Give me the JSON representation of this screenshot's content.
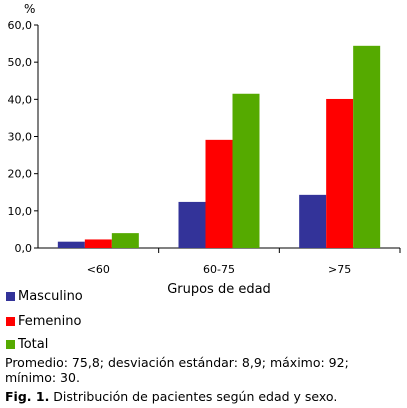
{
  "chart_data": {
    "type": "bar",
    "categories": [
      "<60",
      "60-75",
      ">75"
    ],
    "series": [
      {
        "name": "Masculino",
        "color": "#333399",
        "values": [
          1.7,
          12.4,
          14.3
        ]
      },
      {
        "name": "Femenino",
        "color": "#ff0000",
        "values": [
          2.3,
          29.1,
          40.1
        ]
      },
      {
        "name": "Total",
        "color": "#55aa00",
        "values": [
          4.0,
          41.5,
          54.4
        ]
      }
    ],
    "yunit": "%",
    "xlabel": "Grupos de edad",
    "ylim": [
      0,
      60
    ],
    "yticks": [
      "0,0",
      "10,0",
      "20,0",
      "30,0",
      "40,0",
      "50,0",
      "60,0"
    ],
    "grid": false,
    "legend_position": "bottom-left"
  },
  "caption": {
    "stats": "Promedio: 75,8;   desviación estándar: 8,9;   máximo: 92;   mínimo: 30.",
    "fig_label": "Fig. 1.",
    "fig_text": " Distribución de pacientes según edad y sexo."
  }
}
